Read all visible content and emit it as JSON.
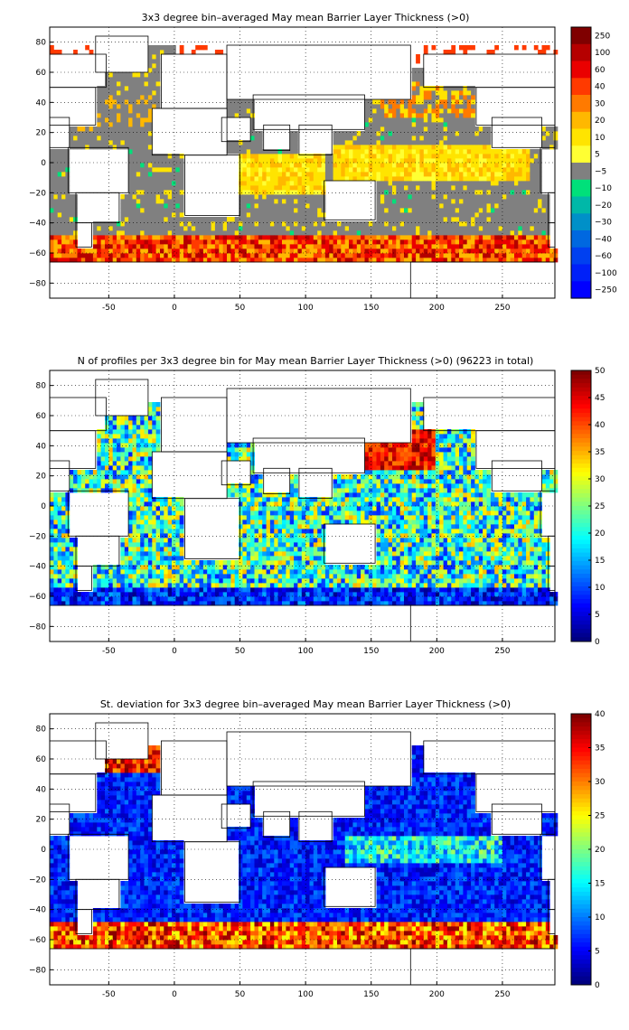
{
  "chart_data": [
    {
      "type": "heatmap",
      "title": "3x3 degree bin–averaged May mean Barrier Layer Thickness (>0)",
      "xlabel": "",
      "ylabel": "",
      "xlim": [
        -95,
        290
      ],
      "ylim": [
        -90,
        90
      ],
      "grid": true,
      "x_ticks": [
        "-50",
        "0",
        "50",
        "100",
        "150",
        "200",
        "250"
      ],
      "y_ticks": [
        "80",
        "60",
        "40",
        "20",
        "0",
        "−20",
        "−40",
        "−60",
        "−80"
      ],
      "colorbar_labels": [
        "250",
        "100",
        "60",
        "40",
        "30",
        "20",
        "10",
        "5",
        "−5",
        "−10",
        "−20",
        "−30",
        "−40",
        "−60",
        "−100",
        "−250"
      ],
      "colorbar_colors": [
        "#7f0000",
        "#b50000",
        "#ea0000",
        "#ff3a00",
        "#ff7a00",
        "#ffb800",
        "#ffe400",
        "#ffff33",
        "#808080",
        "#00e07a",
        "#00b8a8",
        "#0090c8",
        "#0068e0",
        "#0040f0",
        "#0020f8",
        "#0000ff"
      ],
      "colormap": "custom-diverging",
      "land_color": "#ffffff",
      "zero_band_color": "#808080",
      "description_of_values": "colored 3×3° bins over ocean: grey near zero in most subtropical waters, yellow–orange (5–30) in equatorial Pacific/Indian oceans and North Pacific, red (40–250) along the Southern Ocean band near 55°S and in the subpolar North Atlantic"
    },
    {
      "type": "heatmap",
      "title": "N of profiles per 3x3 degree bin for May mean Barrier Layer Thickness (>0) (96223 in total)",
      "xlabel": "",
      "ylabel": "",
      "xlim": [
        -95,
        290
      ],
      "ylim": [
        -90,
        90
      ],
      "grid": true,
      "x_ticks": [
        "-50",
        "0",
        "50",
        "100",
        "150",
        "200",
        "250"
      ],
      "y_ticks": [
        "80",
        "60",
        "40",
        "20",
        "0",
        "−20",
        "−40",
        "−60",
        "−80"
      ],
      "colorbar_labels": [
        "50",
        "45",
        "40",
        "35",
        "30",
        "25",
        "20",
        "15",
        "10",
        "5",
        "0"
      ],
      "colorbar_range": [
        0,
        50
      ],
      "colormap": "jet",
      "total_profiles": 96223
    },
    {
      "type": "heatmap",
      "title": "St. deviation for 3x3 degree bin–averaged May mean Barrier Layer Thickness (>0)",
      "xlabel": "",
      "ylabel": "",
      "xlim": [
        -95,
        290
      ],
      "ylim": [
        -90,
        90
      ],
      "grid": true,
      "x_ticks": [
        "-50",
        "0",
        "50",
        "100",
        "150",
        "200",
        "250"
      ],
      "y_ticks": [
        "80",
        "60",
        "40",
        "20",
        "0",
        "−20",
        "−40",
        "−60",
        "−80"
      ],
      "colorbar_labels": [
        "40",
        "35",
        "30",
        "25",
        "20",
        "15",
        "10",
        "5",
        "0"
      ],
      "colorbar_range": [
        0,
        40
      ],
      "colormap": "jet"
    }
  ]
}
